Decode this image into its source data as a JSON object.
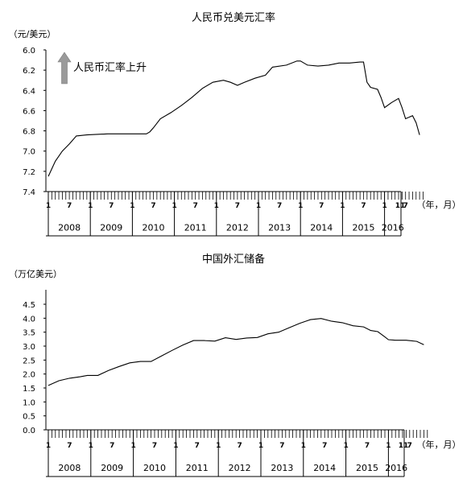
{
  "chart_data": [
    {
      "type": "line",
      "title": "人民币兑美元汇率",
      "ylabel": "（元/美元）",
      "xlabel": "（年，月）",
      "ylim": [
        6.0,
        7.4
      ],
      "y_inverted": true,
      "yticks": [
        "6.0",
        "6.2",
        "6.4",
        "6.6",
        "6.8",
        "7.0",
        "7.2",
        "7.4"
      ],
      "annotation": "人民币汇率上升",
      "x_month_labels": [
        "1",
        "7"
      ],
      "x_last_label": "11",
      "years": [
        "2008",
        "2009",
        "2010",
        "2011",
        "2012",
        "2013",
        "2014",
        "2015",
        "2016"
      ],
      "x": [
        "2008-01",
        "2008-03",
        "2008-05",
        "2008-07",
        "2008-09",
        "2008-12",
        "2009-06",
        "2009-12",
        "2010-05",
        "2010-06",
        "2010-07",
        "2010-09",
        "2010-12",
        "2011-03",
        "2011-06",
        "2011-09",
        "2011-12",
        "2012-03",
        "2012-05",
        "2012-07",
        "2012-09",
        "2012-12",
        "2013-03",
        "2013-05",
        "2013-09",
        "2013-12",
        "2014-01",
        "2014-03",
        "2014-06",
        "2014-09",
        "2014-12",
        "2015-03",
        "2015-06",
        "2015-07",
        "2015-08",
        "2015-09",
        "2015-11",
        "2015-12",
        "2016-01",
        "2016-03",
        "2016-05",
        "2016-06",
        "2016-07",
        "2016-09",
        "2016-10",
        "2016-11"
      ],
      "series": [
        {
          "values": [
            7.25,
            7.1,
            7.0,
            6.93,
            6.85,
            6.84,
            6.83,
            6.83,
            6.83,
            6.81,
            6.77,
            6.68,
            6.62,
            6.55,
            6.47,
            6.38,
            6.32,
            6.3,
            6.32,
            6.35,
            6.32,
            6.28,
            6.25,
            6.17,
            6.15,
            6.11,
            6.11,
            6.15,
            6.16,
            6.15,
            6.13,
            6.13,
            6.12,
            6.12,
            6.32,
            6.37,
            6.39,
            6.47,
            6.57,
            6.52,
            6.48,
            6.57,
            6.68,
            6.65,
            6.72,
            6.84
          ]
        }
      ]
    },
    {
      "type": "line",
      "title": "中国外汇储备",
      "ylabel": "（万亿美元）",
      "xlabel": "（年，月）",
      "ylim": [
        0.0,
        4.5
      ],
      "yticks": [
        "0.0",
        "0.5",
        "1.0",
        "1.5",
        "2.0",
        "2.5",
        "3.0",
        "3.5",
        "4.0",
        "4.5"
      ],
      "x_month_labels": [
        "1",
        "7"
      ],
      "x_last_label": "11",
      "years": [
        "2008",
        "2009",
        "2010",
        "2011",
        "2012",
        "2013",
        "2014",
        "2015",
        "2016"
      ],
      "x": [
        "2008-01",
        "2008-04",
        "2008-07",
        "2008-10",
        "2008-12",
        "2009-03",
        "2009-06",
        "2009-09",
        "2009-12",
        "2010-03",
        "2010-06",
        "2010-09",
        "2010-12",
        "2011-03",
        "2011-06",
        "2011-09",
        "2011-12",
        "2012-03",
        "2012-06",
        "2012-09",
        "2012-12",
        "2013-03",
        "2013-06",
        "2013-09",
        "2013-12",
        "2014-03",
        "2014-06",
        "2014-09",
        "2014-12",
        "2015-03",
        "2015-06",
        "2015-08",
        "2015-10",
        "2015-12",
        "2016-01",
        "2016-03",
        "2016-06",
        "2016-09",
        "2016-11"
      ],
      "series": [
        {
          "values": [
            1.59,
            1.76,
            1.85,
            1.9,
            1.95,
            1.95,
            2.13,
            2.27,
            2.4,
            2.45,
            2.45,
            2.65,
            2.85,
            3.04,
            3.2,
            3.2,
            3.18,
            3.3,
            3.24,
            3.29,
            3.31,
            3.44,
            3.5,
            3.66,
            3.82,
            3.95,
            3.99,
            3.89,
            3.84,
            3.73,
            3.69,
            3.56,
            3.52,
            3.33,
            3.23,
            3.21,
            3.21,
            3.17,
            3.05
          ]
        }
      ]
    }
  ]
}
